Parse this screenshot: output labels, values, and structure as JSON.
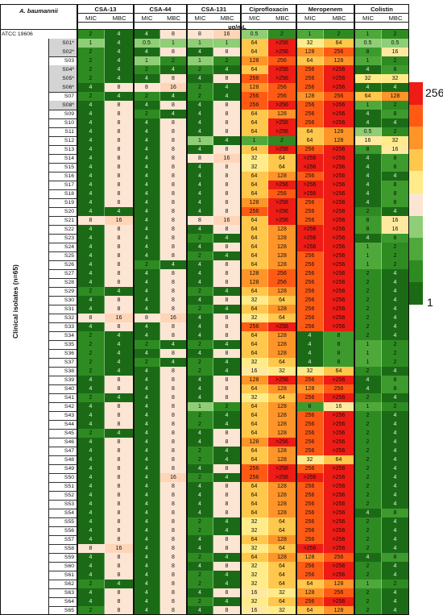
{
  "table": {
    "corner_label": "A. baumannii",
    "unit_label": "µg/mL",
    "clinical_label": "Clinical isolates (n=65)",
    "reference_label": "ATCC 19606",
    "groups": [
      {
        "name": "CSA-13"
      },
      {
        "name": "CSA-44"
      },
      {
        "name": "CSA-131"
      },
      {
        "name": "Ciprofloxacin"
      },
      {
        "name": "Meropenem"
      },
      {
        "name": "Colistin"
      }
    ],
    "subheaders": [
      "MIC",
      "MBC"
    ]
  },
  "legend": {
    "max_label": "256",
    "min_label": "1",
    "colors": [
      "#1b6b16",
      "#2e8b22",
      "#4fa83a",
      "#8fce76",
      "#fde5d4",
      "#ffeb8a",
      "#ffc74b",
      "#ff9428",
      "#ff5a14",
      "#ee1c15"
    ]
  },
  "chart_data": {
    "type": "heatmap",
    "title": "A. baumannii",
    "value_unit": "µg/mL",
    "color_scale": {
      "min": 1,
      "max": 256
    },
    "columns": [
      "CSA-13 MIC",
      "CSA-13 MBC",
      "CSA-44 MIC",
      "CSA-44 MBC",
      "CSA-131 MIC",
      "CSA-131 MBC",
      "Ciprofloxacin MIC",
      "Ciprofloxacin MBC",
      "Meropenem MIC",
      "Meropenem MBC",
      "Colistin MIC",
      "Colistin MBC"
    ],
    "rows": [
      {
        "label": "ATCC 19606",
        "values": [
          "2",
          "4",
          "4",
          "8",
          "8",
          "16",
          "0.5",
          "2",
          "1",
          "2",
          "1",
          "2"
        ]
      },
      {
        "label": "S01*",
        "values": [
          "1",
          "4",
          "0.5",
          "1",
          "1",
          "1",
          "64",
          ">256",
          "32",
          "64",
          "0.5",
          "0.5"
        ]
      },
      {
        "label": "S02*",
        "values": [
          "2",
          "4",
          "4",
          "8",
          "4",
          "8",
          "64",
          ">256",
          "128",
          "256",
          "8",
          "16"
        ]
      },
      {
        "label": "S03",
        "values": [
          "2",
          "4",
          "1",
          "2",
          "1",
          "2",
          "128",
          "256",
          "64",
          "128",
          "1",
          "2"
        ]
      },
      {
        "label": "S04*",
        "values": [
          "2",
          "4",
          "2",
          "4",
          "2",
          "4",
          "64",
          ">256",
          "256",
          ">256",
          "4",
          "8"
        ]
      },
      {
        "label": "S05*",
        "values": [
          "2",
          "4",
          "4",
          "8",
          "4",
          "8",
          "256",
          ">256",
          "256",
          ">256",
          "32",
          "32"
        ]
      },
      {
        "label": "S06*",
        "values": [
          "4",
          "8",
          "8",
          "16",
          "2",
          "4",
          "128",
          "256",
          "256",
          ">256",
          "4",
          "4"
        ]
      },
      {
        "label": "S07",
        "values": [
          "2",
          "4",
          "2",
          "4",
          "2",
          "4",
          "256",
          "256",
          "128",
          "256",
          "64",
          "128"
        ]
      },
      {
        "label": "S08*",
        "values": [
          "4",
          "8",
          "4",
          "8",
          "4",
          "8",
          "256",
          ">256",
          "256",
          ">256",
          "1",
          "2"
        ]
      },
      {
        "label": "S09",
        "values": [
          "4",
          "8",
          "2",
          "4",
          "4",
          "8",
          "64",
          "128",
          "256",
          ">256",
          "4",
          "8"
        ]
      },
      {
        "label": "S10",
        "values": [
          "4",
          "8",
          "4",
          "8",
          "4",
          "8",
          "64",
          ">256",
          "256",
          ">256",
          "4",
          "4"
        ]
      },
      {
        "label": "S11",
        "values": [
          "4",
          "8",
          "4",
          "8",
          "4",
          "8",
          "64",
          ">256",
          "64",
          "128",
          "0.5",
          "2"
        ]
      },
      {
        "label": "S12",
        "values": [
          "4",
          "8",
          "4",
          "8",
          "1",
          "4",
          "1",
          "2",
          "64",
          "128",
          "16",
          "32"
        ]
      },
      {
        "label": "S13",
        "values": [
          "4",
          "8",
          "4",
          "8",
          "4",
          "8",
          "64",
          ">256",
          "256",
          ">256",
          "8",
          "16"
        ]
      },
      {
        "label": "S14",
        "values": [
          "4",
          "8",
          "4",
          "8",
          "8",
          "16",
          "32",
          "64",
          ">256",
          ">256",
          "4",
          "8"
        ]
      },
      {
        "label": "S15",
        "values": [
          "4",
          "8",
          "4",
          "8",
          "4",
          "8",
          "32",
          "64",
          ">256",
          ">256",
          "4",
          "8"
        ]
      },
      {
        "label": "S16",
        "values": [
          "4",
          "8",
          "4",
          "8",
          "4",
          "8",
          "64",
          "128",
          "256",
          ">256",
          "4",
          "4"
        ]
      },
      {
        "label": "S17",
        "values": [
          "4",
          "8",
          "4",
          "8",
          "4",
          "8",
          "64",
          ">256",
          ">256",
          ">256",
          "4",
          "8"
        ]
      },
      {
        "label": "S18",
        "values": [
          "4",
          "8",
          "4",
          "8",
          "4",
          "8",
          "64",
          "256",
          ">256",
          ">256",
          "4",
          "8"
        ]
      },
      {
        "label": "S19",
        "values": [
          "4",
          "8",
          "4",
          "8",
          "4",
          "8",
          "128",
          ">256",
          "256",
          ">256",
          "4",
          "8"
        ]
      },
      {
        "label": "S20",
        "values": [
          "4",
          "4",
          "4",
          "8",
          "4",
          "8",
          "256",
          ">256",
          "256",
          ">256",
          "2",
          "4"
        ]
      },
      {
        "label": "S21",
        "values": [
          "8",
          "16",
          "4",
          "8",
          "8",
          "16",
          "64",
          ">256",
          "256",
          ">256",
          "8",
          "16"
        ]
      },
      {
        "label": "S22",
        "values": [
          "4",
          "8",
          "4",
          "8",
          "4",
          "8",
          "64",
          "128",
          ">256",
          ">256",
          "8",
          "16"
        ]
      },
      {
        "label": "S23",
        "values": [
          "4",
          "8",
          "4",
          "8",
          "2",
          "4",
          "64",
          "128",
          ">256",
          ">256",
          "4",
          "8"
        ]
      },
      {
        "label": "S24",
        "values": [
          "4",
          "8",
          "4",
          "8",
          "4",
          "8",
          "64",
          "128",
          ">256",
          ">256",
          "1",
          "2"
        ]
      },
      {
        "label": "S25",
        "values": [
          "4",
          "8",
          "4",
          "8",
          "2",
          "4",
          "64",
          "128",
          "256",
          ">256",
          "1",
          "2"
        ]
      },
      {
        "label": "S26",
        "values": [
          "4",
          "8",
          "2",
          "4",
          "4",
          "8",
          "64",
          "128",
          "256",
          ">256",
          "1",
          "2"
        ]
      },
      {
        "label": "S27",
        "values": [
          "4",
          "8",
          "4",
          "8",
          "4",
          "8",
          "128",
          "256",
          "256",
          ">256",
          "2",
          "4"
        ]
      },
      {
        "label": "S28",
        "values": [
          "4",
          "8",
          "4",
          "8",
          "4",
          "8",
          "128",
          "256",
          "256",
          ">256",
          "2",
          "4"
        ]
      },
      {
        "label": "S29",
        "values": [
          "2",
          "4",
          "4",
          "8",
          "2",
          "4",
          "64",
          "128",
          "256",
          ">256",
          "2",
          "4"
        ]
      },
      {
        "label": "S30",
        "values": [
          "4",
          "8",
          "4",
          "8",
          "4",
          "8",
          "32",
          "64",
          "256",
          ">256",
          "2",
          "4"
        ]
      },
      {
        "label": "S31",
        "values": [
          "4",
          "8",
          "4",
          "8",
          "2",
          "4",
          "64",
          "128",
          "256",
          ">256",
          "2",
          "4"
        ]
      },
      {
        "label": "S32",
        "values": [
          "8",
          "16",
          "8",
          "16",
          "4",
          "8",
          "32",
          "64",
          "256",
          ">256",
          "2",
          "4"
        ]
      },
      {
        "label": "S33",
        "values": [
          "4",
          "8",
          "4",
          "8",
          "4",
          "8",
          "256",
          ">256",
          "256",
          ">256",
          "2",
          "4"
        ]
      },
      {
        "label": "S34",
        "values": [
          "2",
          "4",
          "4",
          "8",
          "4",
          "8",
          "64",
          "128",
          "4",
          "8",
          "2",
          "4"
        ]
      },
      {
        "label": "S35",
        "values": [
          "2",
          "4",
          "2",
          "4",
          "2",
          "4",
          "64",
          "128",
          "4",
          "8",
          "1",
          "2"
        ]
      },
      {
        "label": "S36",
        "values": [
          "2",
          "4",
          "4",
          "8",
          "4",
          "8",
          "64",
          "128",
          "4",
          "8",
          "1",
          "2"
        ]
      },
      {
        "label": "S37",
        "values": [
          "2",
          "4",
          "2",
          "4",
          "2",
          "4",
          "32",
          "64",
          "4",
          "8",
          "1",
          "2"
        ]
      },
      {
        "label": "S38",
        "values": [
          "2",
          "4",
          "4",
          "8",
          "2",
          "4",
          "16",
          "32",
          "32",
          "64",
          "2",
          "4"
        ]
      },
      {
        "label": "S39",
        "values": [
          "4",
          "8",
          "4",
          "8",
          "4",
          "8",
          "128",
          ">256",
          "256",
          ">256",
          "4",
          "8"
        ]
      },
      {
        "label": "S40",
        "values": [
          "4",
          "8",
          "4",
          "8",
          "4",
          "8",
          "64",
          "128",
          "128",
          "256",
          "4",
          "8"
        ]
      },
      {
        "label": "S41",
        "values": [
          "2",
          "4",
          "4",
          "8",
          "4",
          "8",
          "32",
          "64",
          "256",
          ">256",
          "2",
          "4"
        ]
      },
      {
        "label": "S42",
        "values": [
          "4",
          "8",
          "4",
          "8",
          "1",
          "2",
          "64",
          "128",
          "8",
          "16",
          "1",
          "2"
        ]
      },
      {
        "label": "S43",
        "values": [
          "4",
          "8",
          "4",
          "8",
          "2",
          "4",
          "64",
          "128",
          "256",
          ">256",
          "2",
          "4"
        ]
      },
      {
        "label": "S44",
        "values": [
          "4",
          "8",
          "4",
          "8",
          "2",
          "4",
          "64",
          "128",
          "256",
          ">256",
          "2",
          "4"
        ]
      },
      {
        "label": "S45",
        "values": [
          "2",
          "4",
          "4",
          "8",
          "4",
          "8",
          "64",
          "128",
          "256",
          ">256",
          "2",
          "4"
        ]
      },
      {
        "label": "S46",
        "values": [
          "4",
          "8",
          "4",
          "8",
          "4",
          "8",
          "128",
          ">256",
          "256",
          ">256",
          "2",
          "4"
        ]
      },
      {
        "label": "S47",
        "values": [
          "4",
          "8",
          "4",
          "8",
          "2",
          "4",
          "64",
          "128",
          "256",
          ">256",
          "2",
          "4"
        ]
      },
      {
        "label": "S48",
        "values": [
          "4",
          "8",
          "4",
          "8",
          "2",
          "4",
          "64",
          "128",
          "32",
          "64",
          "2",
          "4"
        ]
      },
      {
        "label": "S49",
        "values": [
          "4",
          "8",
          "4",
          "8",
          "4",
          "8",
          "256",
          ">256",
          "256",
          ">256",
          "2",
          "4"
        ]
      },
      {
        "label": "S50",
        "values": [
          "4",
          "8",
          "4",
          "16",
          "2",
          "4",
          "256",
          ">256",
          ">256",
          ">256",
          "2",
          "4"
        ]
      },
      {
        "label": "S51",
        "values": [
          "4",
          "8",
          "4",
          "8",
          "4",
          "8",
          "64",
          "128",
          "256",
          ">256",
          "2",
          "4"
        ]
      },
      {
        "label": "S52",
        "values": [
          "4",
          "8",
          "4",
          "8",
          "4",
          "8",
          "64",
          "128",
          "256",
          ">256",
          "2",
          "4"
        ]
      },
      {
        "label": "S53",
        "values": [
          "4",
          "8",
          "4",
          "8",
          "4",
          "8",
          "64",
          "128",
          "256",
          ">256",
          "2",
          "4"
        ]
      },
      {
        "label": "S54",
        "values": [
          "4",
          "8",
          "4",
          "8",
          "4",
          "8",
          "64",
          "128",
          "256",
          ">256",
          "4",
          "8"
        ]
      },
      {
        "label": "S55",
        "values": [
          "4",
          "8",
          "4",
          "8",
          "2",
          "4",
          "32",
          "64",
          "256",
          ">256",
          "2",
          "4"
        ]
      },
      {
        "label": "S56",
        "values": [
          "4",
          "8",
          "4",
          "8",
          "2",
          "4",
          "32",
          "64",
          "256",
          ">256",
          "2",
          "4"
        ]
      },
      {
        "label": "S57",
        "values": [
          "4",
          "8",
          "4",
          "8",
          "4",
          "8",
          "64",
          "128",
          "256",
          ">256",
          "2",
          "4"
        ]
      },
      {
        "label": "S58",
        "values": [
          "8",
          "16",
          "4",
          "8",
          "4",
          "8",
          "32",
          "64",
          ">256",
          ">256",
          "2",
          "4"
        ]
      },
      {
        "label": "S59",
        "values": [
          "4",
          "8",
          "4",
          "8",
          "2",
          "4",
          "64",
          "128",
          "128",
          "256",
          "4",
          "8"
        ]
      },
      {
        "label": "S60",
        "values": [
          "4",
          "8",
          "4",
          "8",
          "4",
          "8",
          "32",
          "64",
          "256",
          ">256",
          "2",
          "4"
        ]
      },
      {
        "label": "S61",
        "values": [
          "4",
          "8",
          "4",
          "8",
          "2",
          "4",
          "32",
          "64",
          "256",
          ">256",
          "2",
          "4"
        ]
      },
      {
        "label": "S62",
        "values": [
          "2",
          "4",
          "4",
          "8",
          "2",
          "4",
          "32",
          "64",
          "64",
          "128",
          "1",
          "2"
        ]
      },
      {
        "label": "S63",
        "values": [
          "4",
          "8",
          "4",
          "8",
          "4",
          "8",
          "16",
          "32",
          "128",
          "256",
          "2",
          "4"
        ]
      },
      {
        "label": "S64",
        "values": [
          "4",
          "8",
          "4",
          "8",
          "2",
          "4",
          "32",
          "64",
          "256",
          ">256",
          "2",
          "4"
        ]
      },
      {
        "label": "S65",
        "values": [
          "2",
          "8",
          "4",
          "8",
          "4",
          "8",
          "16",
          "32",
          "64",
          "128",
          "2",
          "4"
        ]
      }
    ]
  }
}
